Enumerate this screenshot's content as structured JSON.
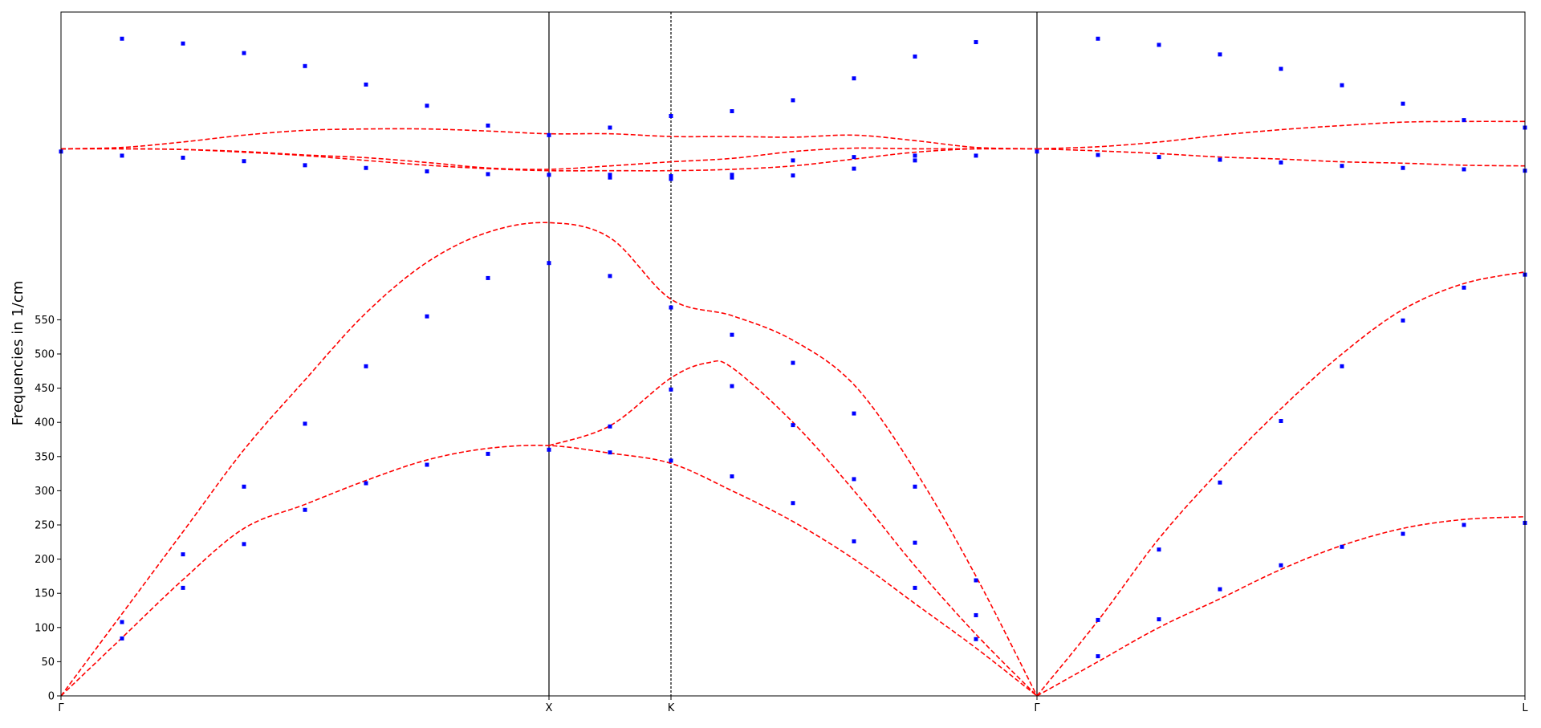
{
  "chart_data": {
    "type": "line",
    "title": "",
    "xlabel": "",
    "ylabel": "Frequencies in 1/cm",
    "ylim": [
      0,
      1000
    ],
    "xlim": [
      0,
      12
    ],
    "y_ticks": [
      0,
      50,
      100,
      150,
      200,
      250,
      300,
      350,
      400,
      450,
      500,
      550
    ],
    "x_ticks": [
      {
        "x": 0,
        "label": "Γ"
      },
      {
        "x": 4,
        "label": "X"
      },
      {
        "x": 5,
        "label": "K"
      },
      {
        "x": 8,
        "label": "Γ"
      },
      {
        "x": 12,
        "label": "L"
      }
    ],
    "vertical_lines": [
      {
        "x": 4,
        "style": "solid"
      },
      {
        "x": 5,
        "style": "dashed"
      },
      {
        "x": 8,
        "style": "solid"
      }
    ],
    "grid": false,
    "line_color": "#ff0000",
    "point_color": "#0000ff",
    "series": [
      {
        "style": "dashed",
        "points": [
          [
            0,
            0
          ],
          [
            0.5,
            85
          ],
          [
            1,
            170
          ],
          [
            1.5,
            245
          ],
          [
            2,
            280
          ],
          [
            2.5,
            315
          ],
          [
            3,
            345
          ],
          [
            3.5,
            362
          ],
          [
            4,
            366
          ],
          [
            4.5,
            355
          ],
          [
            5,
            340
          ],
          [
            5.5,
            300
          ],
          [
            6,
            255
          ],
          [
            6.5,
            200
          ],
          [
            7,
            135
          ],
          [
            7.5,
            70
          ],
          [
            8,
            0
          ]
        ]
      },
      {
        "style": "dashed",
        "points": [
          [
            0,
            0
          ],
          [
            0.5,
            120
          ],
          [
            1,
            240
          ],
          [
            1.5,
            360
          ],
          [
            2,
            462
          ],
          [
            2.5,
            560
          ],
          [
            3,
            634
          ],
          [
            3.5,
            678
          ],
          [
            4,
            692
          ],
          [
            4.5,
            670
          ],
          [
            5,
            580
          ],
          [
            5.5,
            556
          ],
          [
            6,
            520
          ],
          [
            6.5,
            455
          ],
          [
            7,
            330
          ],
          [
            7.5,
            175
          ],
          [
            8,
            0
          ]
        ]
      },
      {
        "style": "dashed",
        "points": [
          [
            4,
            366
          ],
          [
            4.5,
            395
          ],
          [
            5,
            465
          ],
          [
            5.3,
            487
          ],
          [
            5.5,
            480
          ],
          [
            6,
            400
          ],
          [
            6.5,
            300
          ],
          [
            7,
            190
          ],
          [
            7.5,
            90
          ],
          [
            8,
            0
          ]
        ]
      },
      {
        "style": "dashed",
        "points": [
          [
            0,
            800
          ],
          [
            0.5,
            800
          ],
          [
            1,
            799
          ],
          [
            1.5,
            795
          ],
          [
            2,
            790
          ],
          [
            2.5,
            783
          ],
          [
            3,
            776
          ],
          [
            3.5,
            771
          ],
          [
            4,
            768
          ],
          [
            4.5,
            768
          ],
          [
            5,
            768
          ],
          [
            5.5,
            770
          ],
          [
            6,
            775
          ],
          [
            6.5,
            785
          ],
          [
            7,
            795
          ],
          [
            7.5,
            800
          ],
          [
            8,
            800
          ]
        ]
      },
      {
        "style": "dashed",
        "points": [
          [
            0,
            800
          ],
          [
            0.5,
            802
          ],
          [
            1,
            810
          ],
          [
            1.5,
            820
          ],
          [
            2,
            827
          ],
          [
            2.5,
            829
          ],
          [
            3,
            829
          ],
          [
            3.5,
            826
          ],
          [
            4,
            822
          ],
          [
            4.5,
            822
          ],
          [
            5,
            818
          ],
          [
            5.5,
            818
          ],
          [
            6,
            817
          ],
          [
            6.5,
            820
          ],
          [
            7,
            812
          ],
          [
            7.5,
            802
          ],
          [
            8,
            800
          ]
        ]
      },
      {
        "style": "dashed",
        "points": [
          [
            0,
            800
          ],
          [
            0.5,
            800
          ],
          [
            1,
            799
          ],
          [
            1.5,
            796
          ],
          [
            2,
            791
          ],
          [
            2.5,
            787
          ],
          [
            3,
            780
          ],
          [
            3.5,
            772
          ],
          [
            4,
            770
          ],
          [
            4.5,
            775
          ],
          [
            5,
            781
          ],
          [
            5.5,
            786
          ],
          [
            6,
            796
          ],
          [
            6.5,
            801
          ],
          [
            7,
            800
          ],
          [
            7.5,
            800
          ],
          [
            8,
            800
          ]
        ]
      },
      {
        "style": "dashed",
        "points": [
          [
            8,
            0
          ],
          [
            8.5,
            50
          ],
          [
            9,
            100
          ],
          [
            9.5,
            142
          ],
          [
            10,
            185
          ],
          [
            10.5,
            220
          ],
          [
            11,
            245
          ],
          [
            11.5,
            258
          ],
          [
            12,
            262
          ]
        ]
      },
      {
        "style": "dashed",
        "points": [
          [
            8,
            0
          ],
          [
            8.5,
            110
          ],
          [
            9,
            230
          ],
          [
            9.5,
            330
          ],
          [
            10,
            420
          ],
          [
            10.5,
            500
          ],
          [
            11,
            565
          ],
          [
            11.5,
            603
          ],
          [
            12,
            620
          ]
        ]
      },
      {
        "style": "dashed",
        "points": [
          [
            8,
            800
          ],
          [
            8.5,
            797
          ],
          [
            9,
            793
          ],
          [
            9.5,
            788
          ],
          [
            10,
            785
          ],
          [
            10.5,
            781
          ],
          [
            11,
            779
          ],
          [
            11.5,
            776
          ],
          [
            12,
            775
          ]
        ]
      },
      {
        "style": "dashed",
        "points": [
          [
            8,
            800
          ],
          [
            8.5,
            803
          ],
          [
            9,
            810
          ],
          [
            9.5,
            820
          ],
          [
            10,
            828
          ],
          [
            10.5,
            834
          ],
          [
            11,
            839
          ],
          [
            11.5,
            840
          ],
          [
            12,
            840
          ]
        ]
      }
    ],
    "scatter": [
      {
        "x": 0,
        "y": 796
      },
      {
        "x": 0.5,
        "y": 108
      },
      {
        "x": 0.5,
        "y": 84
      },
      {
        "x": 0.5,
        "y": 790
      },
      {
        "x": 0.5,
        "y": 961
      },
      {
        "x": 1,
        "y": 207
      },
      {
        "x": 1,
        "y": 158
      },
      {
        "x": 1,
        "y": 787
      },
      {
        "x": 1,
        "y": 954
      },
      {
        "x": 1.5,
        "y": 306
      },
      {
        "x": 1.5,
        "y": 222
      },
      {
        "x": 1.5,
        "y": 782
      },
      {
        "x": 1.5,
        "y": 940
      },
      {
        "x": 2,
        "y": 398
      },
      {
        "x": 2,
        "y": 272
      },
      {
        "x": 2,
        "y": 776
      },
      {
        "x": 2,
        "y": 921
      },
      {
        "x": 2.5,
        "y": 482
      },
      {
        "x": 2.5,
        "y": 311
      },
      {
        "x": 2.5,
        "y": 772
      },
      {
        "x": 2.5,
        "y": 894
      },
      {
        "x": 3,
        "y": 555
      },
      {
        "x": 3,
        "y": 338
      },
      {
        "x": 3,
        "y": 767
      },
      {
        "x": 3,
        "y": 863
      },
      {
        "x": 3.5,
        "y": 611
      },
      {
        "x": 3.5,
        "y": 354
      },
      {
        "x": 3.5,
        "y": 763
      },
      {
        "x": 3.5,
        "y": 834
      },
      {
        "x": 4,
        "y": 633
      },
      {
        "x": 4,
        "y": 360
      },
      {
        "x": 4,
        "y": 762
      },
      {
        "x": 4,
        "y": 820
      },
      {
        "x": 4.5,
        "y": 614
      },
      {
        "x": 4.5,
        "y": 394
      },
      {
        "x": 4.5,
        "y": 356
      },
      {
        "x": 4.5,
        "y": 762
      },
      {
        "x": 4.5,
        "y": 758
      },
      {
        "x": 4.5,
        "y": 831
      },
      {
        "x": 5,
        "y": 568
      },
      {
        "x": 5,
        "y": 448
      },
      {
        "x": 5,
        "y": 344
      },
      {
        "x": 5,
        "y": 760
      },
      {
        "x": 5,
        "y": 756
      },
      {
        "x": 5,
        "y": 848
      },
      {
        "x": 5.5,
        "y": 528
      },
      {
        "x": 5.5,
        "y": 453
      },
      {
        "x": 5.5,
        "y": 321
      },
      {
        "x": 5.5,
        "y": 762
      },
      {
        "x": 5.5,
        "y": 758
      },
      {
        "x": 5.5,
        "y": 855
      },
      {
        "x": 6,
        "y": 487
      },
      {
        "x": 6,
        "y": 396
      },
      {
        "x": 6,
        "y": 282
      },
      {
        "x": 6,
        "y": 783
      },
      {
        "x": 6,
        "y": 761
      },
      {
        "x": 6,
        "y": 871
      },
      {
        "x": 6.5,
        "y": 413
      },
      {
        "x": 6.5,
        "y": 317
      },
      {
        "x": 6.5,
        "y": 226
      },
      {
        "x": 6.5,
        "y": 788
      },
      {
        "x": 6.5,
        "y": 771
      },
      {
        "x": 6.5,
        "y": 903
      },
      {
        "x": 7,
        "y": 306
      },
      {
        "x": 7,
        "y": 224
      },
      {
        "x": 7,
        "y": 158
      },
      {
        "x": 7,
        "y": 790
      },
      {
        "x": 7,
        "y": 783
      },
      {
        "x": 7,
        "y": 935
      },
      {
        "x": 7.5,
        "y": 169
      },
      {
        "x": 7.5,
        "y": 118
      },
      {
        "x": 7.5,
        "y": 83
      },
      {
        "x": 7.5,
        "y": 790
      },
      {
        "x": 7.5,
        "y": 956
      },
      {
        "x": 8,
        "y": 796
      },
      {
        "x": 8.5,
        "y": 111
      },
      {
        "x": 8.5,
        "y": 58
      },
      {
        "x": 8.5,
        "y": 791
      },
      {
        "x": 8.5,
        "y": 961
      },
      {
        "x": 9,
        "y": 214
      },
      {
        "x": 9,
        "y": 112
      },
      {
        "x": 9,
        "y": 788
      },
      {
        "x": 9,
        "y": 952
      },
      {
        "x": 9.5,
        "y": 312
      },
      {
        "x": 9.5,
        "y": 156
      },
      {
        "x": 9.5,
        "y": 784
      },
      {
        "x": 9.5,
        "y": 938
      },
      {
        "x": 10,
        "y": 402
      },
      {
        "x": 10,
        "y": 191
      },
      {
        "x": 10,
        "y": 780
      },
      {
        "x": 10,
        "y": 917
      },
      {
        "x": 10.5,
        "y": 482
      },
      {
        "x": 10.5,
        "y": 218
      },
      {
        "x": 10.5,
        "y": 775
      },
      {
        "x": 10.5,
        "y": 893
      },
      {
        "x": 11,
        "y": 549
      },
      {
        "x": 11,
        "y": 237
      },
      {
        "x": 11,
        "y": 772
      },
      {
        "x": 11,
        "y": 866
      },
      {
        "x": 11.5,
        "y": 597
      },
      {
        "x": 11.5,
        "y": 250
      },
      {
        "x": 11.5,
        "y": 770
      },
      {
        "x": 11.5,
        "y": 842
      },
      {
        "x": 12,
        "y": 616
      },
      {
        "x": 12,
        "y": 253
      },
      {
        "x": 12,
        "y": 768
      },
      {
        "x": 12,
        "y": 831
      }
    ]
  }
}
